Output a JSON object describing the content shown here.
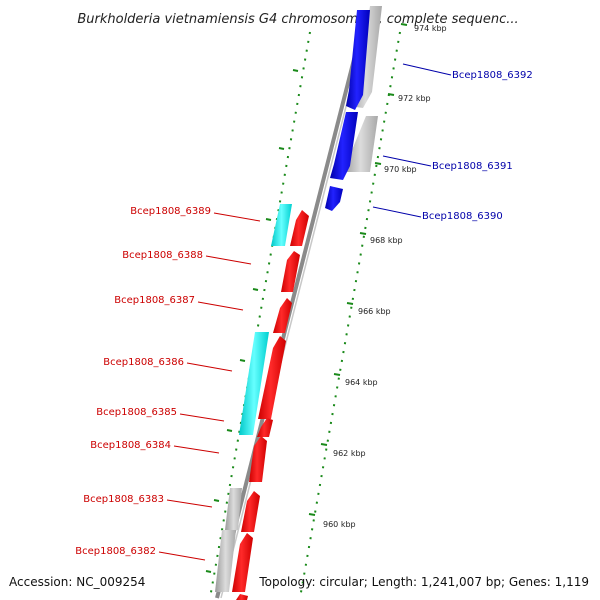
{
  "title": "Burkholderia vietnamiensis G4 chromosome 3, complete sequenc...",
  "accession": "Accession: NC_009254",
  "summary": "Topology: circular; Length: 1,241,007 bp; Genes: 1,119",
  "colors": {
    "forward_gene": "#0000ee",
    "reverse_gene": "#ff0000",
    "feature_cyan": "#00e5e5",
    "feature_grey": "#c0c0c0",
    "backbone": "#8a8a8a",
    "tick": "#1a8a1a",
    "forward_label": "#0000aa",
    "reverse_label": "#cc0000"
  },
  "axis": {
    "unit": "kbp",
    "outer_ticks": [
      "974 kbp",
      "972 kbp",
      "970 kbp"
    ],
    "inner_ticks": [
      "968 kbp",
      "966 kbp",
      "964 kbp",
      "962 kbp",
      "960 kbp"
    ]
  },
  "forward_genes": [
    "Bcep1808_6392",
    "Bcep1808_6391",
    "Bcep1808_6390"
  ],
  "reverse_genes": [
    "Bcep1808_6389",
    "Bcep1808_6388",
    "Bcep1808_6387",
    "Bcep1808_6386",
    "Bcep1808_6385",
    "Bcep1808_6384",
    "Bcep1808_6383",
    "Bcep1808_6382"
  ]
}
